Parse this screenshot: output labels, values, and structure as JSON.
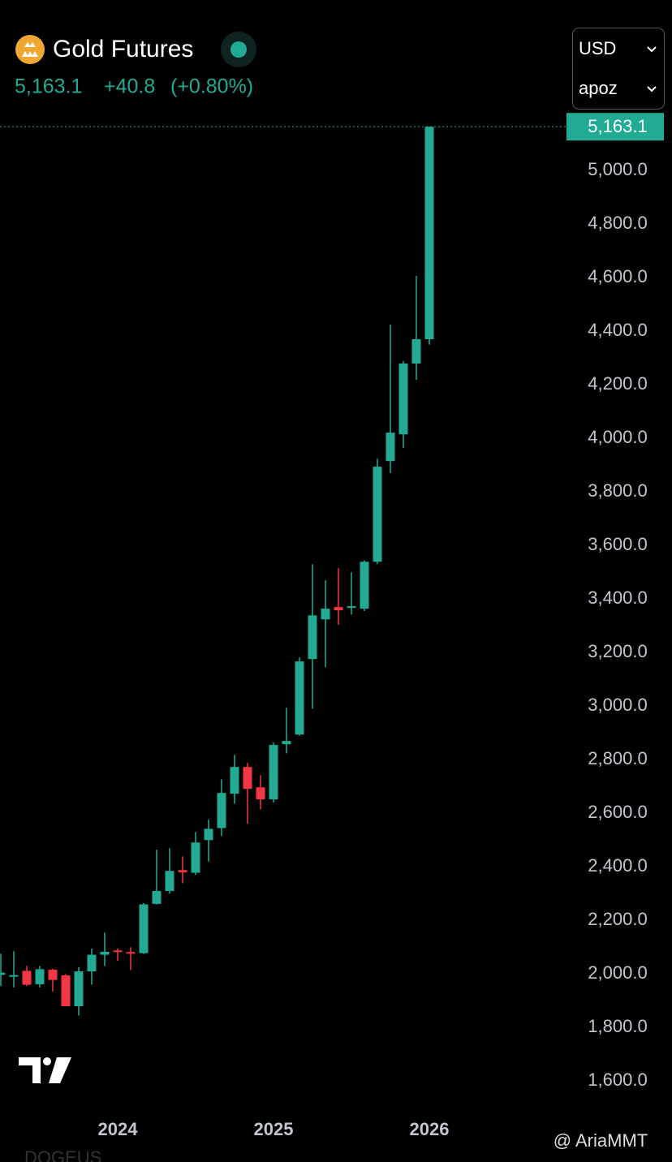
{
  "header": {
    "title": "Gold Futures",
    "price": "5,163.1",
    "change": "+40.8",
    "change_pct": "(+0.80%)",
    "currency": "USD",
    "unit": "apoz"
  },
  "watermark": "@ AriaMMT",
  "footer_text": "DOGEUS",
  "chart_data": {
    "type": "candlestick",
    "title": "Gold Futures",
    "categories": [
      null,
      null,
      null,
      null,
      null,
      null,
      null,
      null,
      null,
      "2024",
      null,
      null,
      null,
      null,
      null,
      null,
      null,
      null,
      null,
      null,
      null,
      "2025",
      null,
      null,
      null,
      null,
      null,
      null,
      null,
      null,
      null,
      null,
      null,
      "2026"
    ],
    "series": [
      {
        "name": "Gold Futures",
        "up_color": "#22ab94",
        "down_color": "#f23645",
        "open": [
          1997,
          1990,
          2012,
          1962,
          2016,
          1995,
          1880,
          2010,
          2072,
          2088,
          2082,
          2078,
          2262,
          2310,
          2388,
          2378,
          2500,
          2545,
          2673,
          2773,
          2697,
          2652,
          2858,
          2894,
          3176,
          3324,
          3370,
          3367,
          3364,
          3539,
          3915,
          4015,
          4279,
          4370
        ],
        "high": [
          2076,
          2085,
          2030,
          2030,
          2020,
          2000,
          2025,
          2095,
          2155,
          2095,
          2100,
          2265,
          2464,
          2470,
          2439,
          2530,
          2576,
          2727,
          2818,
          2788,
          2742,
          2864,
          2994,
          3182,
          3530,
          3470,
          3515,
          3500,
          3545,
          3924,
          4424,
          4288,
          4606,
          5163.1
        ],
        "low": [
          1955,
          1950,
          1955,
          1950,
          1935,
          1880,
          1845,
          1960,
          2030,
          2050,
          2015,
          2075,
          2260,
          2300,
          2339,
          2370,
          2420,
          2515,
          2636,
          2561,
          2615,
          2640,
          2824,
          2890,
          2990,
          3145,
          3303,
          3342,
          3355,
          3530,
          3870,
          3964,
          4218,
          4350
        ],
        "close": [
          2005,
          1996,
          1960,
          2018,
          1978,
          1880,
          2010,
          2072,
          2083,
          2082,
          2078,
          2260,
          2310,
          2385,
          2380,
          2491,
          2542,
          2676,
          2773,
          2691,
          2652,
          2855,
          2870,
          3167,
          3339,
          3364,
          3358,
          3373,
          3539,
          3894,
          4021,
          4279,
          4370,
          5163.1
        ]
      }
    ],
    "last_price": 5163.1,
    "last_price_label": "5,163.1",
    "ylim": [
      1480,
      5200
    ],
    "yticks": [
      {
        "value": 1600,
        "label": "1,600.0"
      },
      {
        "value": 1800,
        "label": "1,800.0"
      },
      {
        "value": 2000,
        "label": "2,000.0"
      },
      {
        "value": 2200,
        "label": "2,200.0"
      },
      {
        "value": 2400,
        "label": "2,400.0"
      },
      {
        "value": 2600,
        "label": "2,600.0"
      },
      {
        "value": 2800,
        "label": "2,800.0"
      },
      {
        "value": 3000,
        "label": "3,000.0"
      },
      {
        "value": 3200,
        "label": "3,200.0"
      },
      {
        "value": 3400,
        "label": "3,400.0"
      },
      {
        "value": 3600,
        "label": "3,600.0"
      },
      {
        "value": 3800,
        "label": "3,800.0"
      },
      {
        "value": 4000,
        "label": "4,000.0"
      },
      {
        "value": 4200,
        "label": "4,200.0"
      },
      {
        "value": 4400,
        "label": "4,400.0"
      },
      {
        "value": 4600,
        "label": "4,600.0"
      },
      {
        "value": 4800,
        "label": "4,800.0"
      },
      {
        "value": 5000,
        "label": "5,000.0"
      }
    ],
    "grid": false
  }
}
